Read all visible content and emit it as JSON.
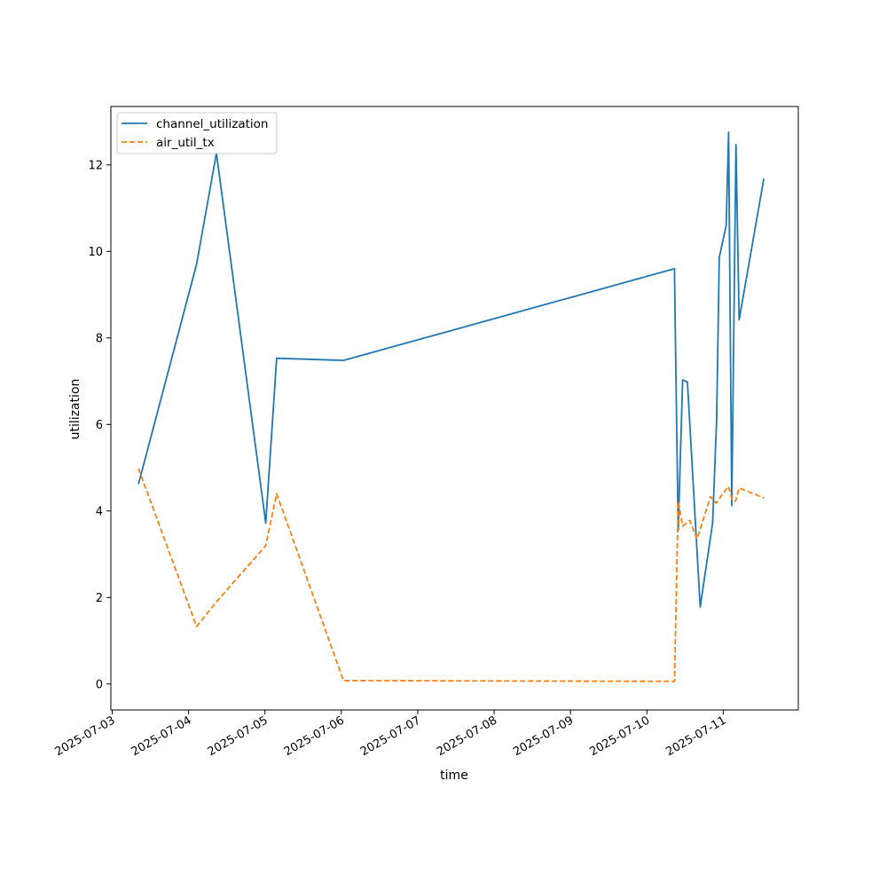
{
  "chart_data": {
    "type": "line",
    "title": "",
    "xlabel": "time",
    "ylabel": "utilization",
    "x_ticks": [
      "2025-07-03",
      "2025-07-04",
      "2025-07-05",
      "2025-07-06",
      "2025-07-07",
      "2025-07-08",
      "2025-07-09",
      "2025-07-10",
      "2025-07-11"
    ],
    "y_ticks": [
      0,
      2,
      4,
      6,
      8,
      10,
      12
    ],
    "xlim": [
      "2025-07-02T23:35",
      "2025-07-11T23:35"
    ],
    "ylim": [
      -0.6,
      13.35
    ],
    "grid": false,
    "legend_position": "top-left",
    "series": [
      {
        "name": "channel_utilization",
        "color": "#1f77b4",
        "dash": "solid",
        "points": [
          [
            "2025-07-03T08:15",
            4.62
          ],
          [
            "2025-07-04T02:30",
            9.7
          ],
          [
            "2025-07-04T08:45",
            12.27
          ],
          [
            "2025-07-05T00:15",
            3.72
          ],
          [
            "2025-07-05T03:40",
            7.53
          ],
          [
            "2025-07-06T00:40",
            7.48
          ],
          [
            "2025-07-10T08:40",
            9.6
          ],
          [
            "2025-07-10T08:55",
            8.2
          ],
          [
            "2025-07-10T09:50",
            3.55
          ],
          [
            "2025-07-10T11:15",
            7.03
          ],
          [
            "2025-07-10T12:45",
            6.98
          ],
          [
            "2025-07-10T16:45",
            1.78
          ],
          [
            "2025-07-10T20:40",
            3.72
          ],
          [
            "2025-07-10T21:55",
            6.1
          ],
          [
            "2025-07-10T22:45",
            9.86
          ],
          [
            "2025-07-11T00:55",
            10.6
          ],
          [
            "2025-07-11T01:40",
            12.75
          ],
          [
            "2025-07-11T02:40",
            4.12
          ],
          [
            "2025-07-11T04:00",
            12.47
          ],
          [
            "2025-07-11T05:00",
            8.42
          ],
          [
            "2025-07-11T12:45",
            11.68
          ]
        ]
      },
      {
        "name": "air_util_tx",
        "color": "#ff7f0e",
        "dash": "dashed",
        "points": [
          [
            "2025-07-03T08:15",
            4.98
          ],
          [
            "2025-07-04T02:30",
            1.33
          ],
          [
            "2025-07-04T08:45",
            1.9
          ],
          [
            "2025-07-05T00:15",
            3.2
          ],
          [
            "2025-07-05T03:40",
            4.4
          ],
          [
            "2025-07-06T00:40",
            0.08
          ],
          [
            "2025-07-10T08:40",
            0.06
          ],
          [
            "2025-07-10T09:50",
            4.22
          ],
          [
            "2025-07-10T11:15",
            3.65
          ],
          [
            "2025-07-10T13:30",
            3.78
          ],
          [
            "2025-07-10T15:45",
            3.35
          ],
          [
            "2025-07-10T20:00",
            4.33
          ],
          [
            "2025-07-10T21:50",
            4.18
          ],
          [
            "2025-07-10T23:40",
            4.38
          ],
          [
            "2025-07-11T01:40",
            4.57
          ],
          [
            "2025-07-11T02:40",
            4.28
          ],
          [
            "2025-07-11T03:50",
            4.22
          ],
          [
            "2025-07-11T05:00",
            4.53
          ],
          [
            "2025-07-11T12:45",
            4.3
          ]
        ]
      }
    ]
  }
}
